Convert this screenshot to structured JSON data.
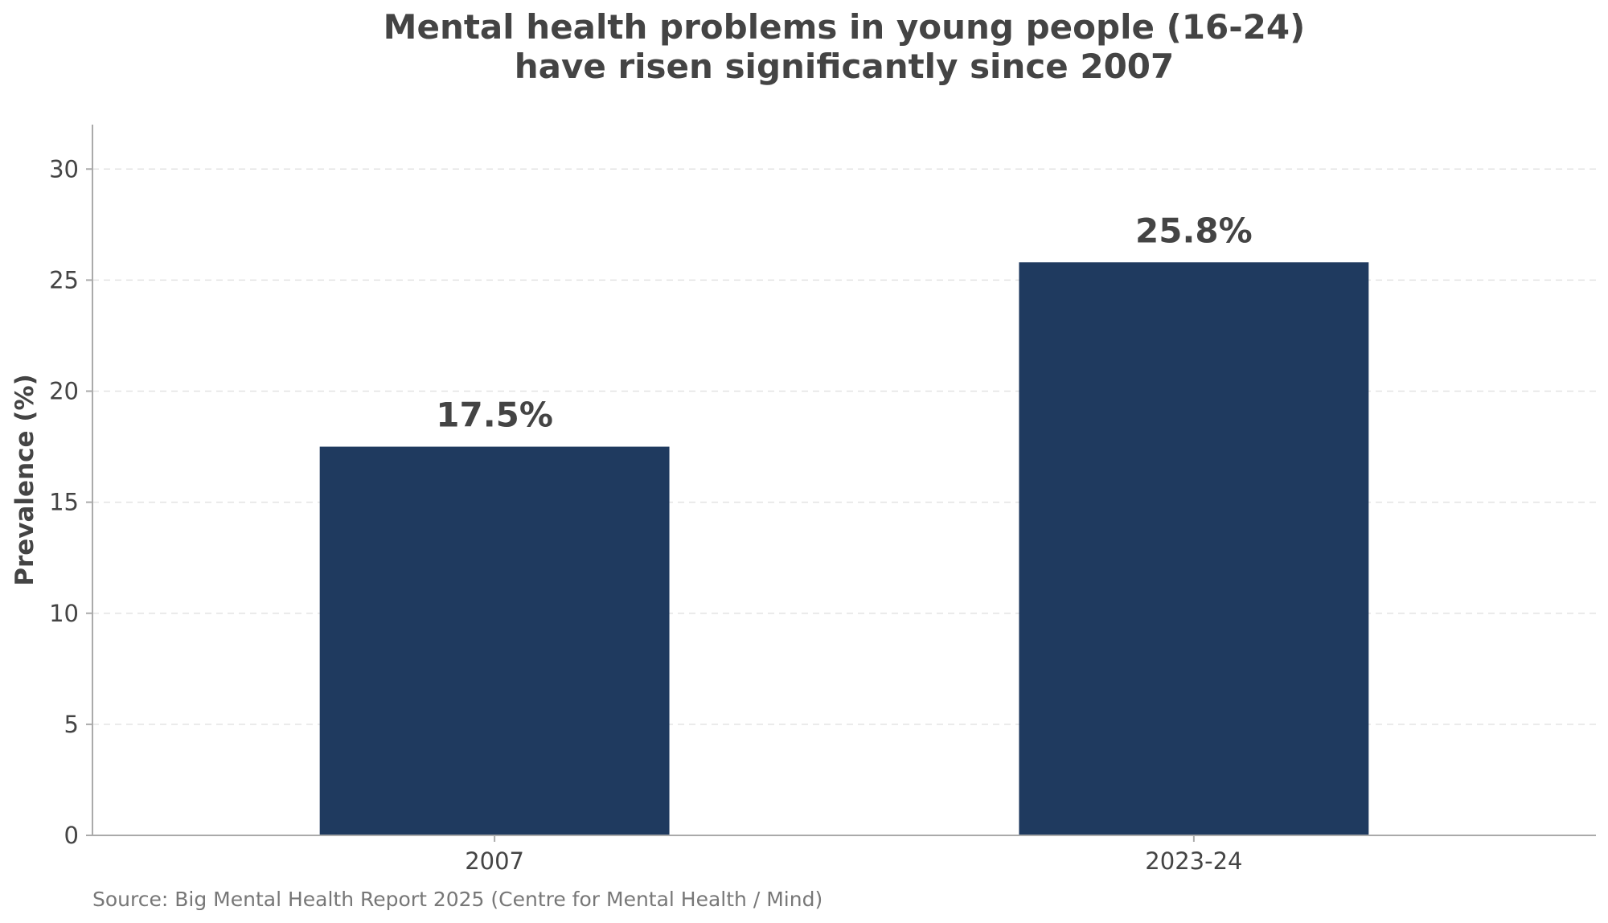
{
  "chart_data": {
    "type": "bar",
    "title": "Mental health problems in young people (16-24)\nhave risen significantly since 2007",
    "title_lines": [
      "Mental health problems in young people (16-24)",
      "have risen significantly since 2007"
    ],
    "categories": [
      "2007",
      "2023-24"
    ],
    "values": [
      17.5,
      25.8
    ],
    "data_labels": [
      "17.5%",
      "25.8%"
    ],
    "xlabel": "",
    "ylabel": "Prevalence (%)",
    "ylim": [
      0,
      32
    ],
    "yticks": [
      0,
      5,
      10,
      15,
      20,
      25,
      30
    ],
    "grid": "y-dashed",
    "legend": "none",
    "bar_color": "#1f3a5f",
    "source": "Source: Big Mental Health Report 2025 (Centre for Mental Health / Mind)"
  }
}
